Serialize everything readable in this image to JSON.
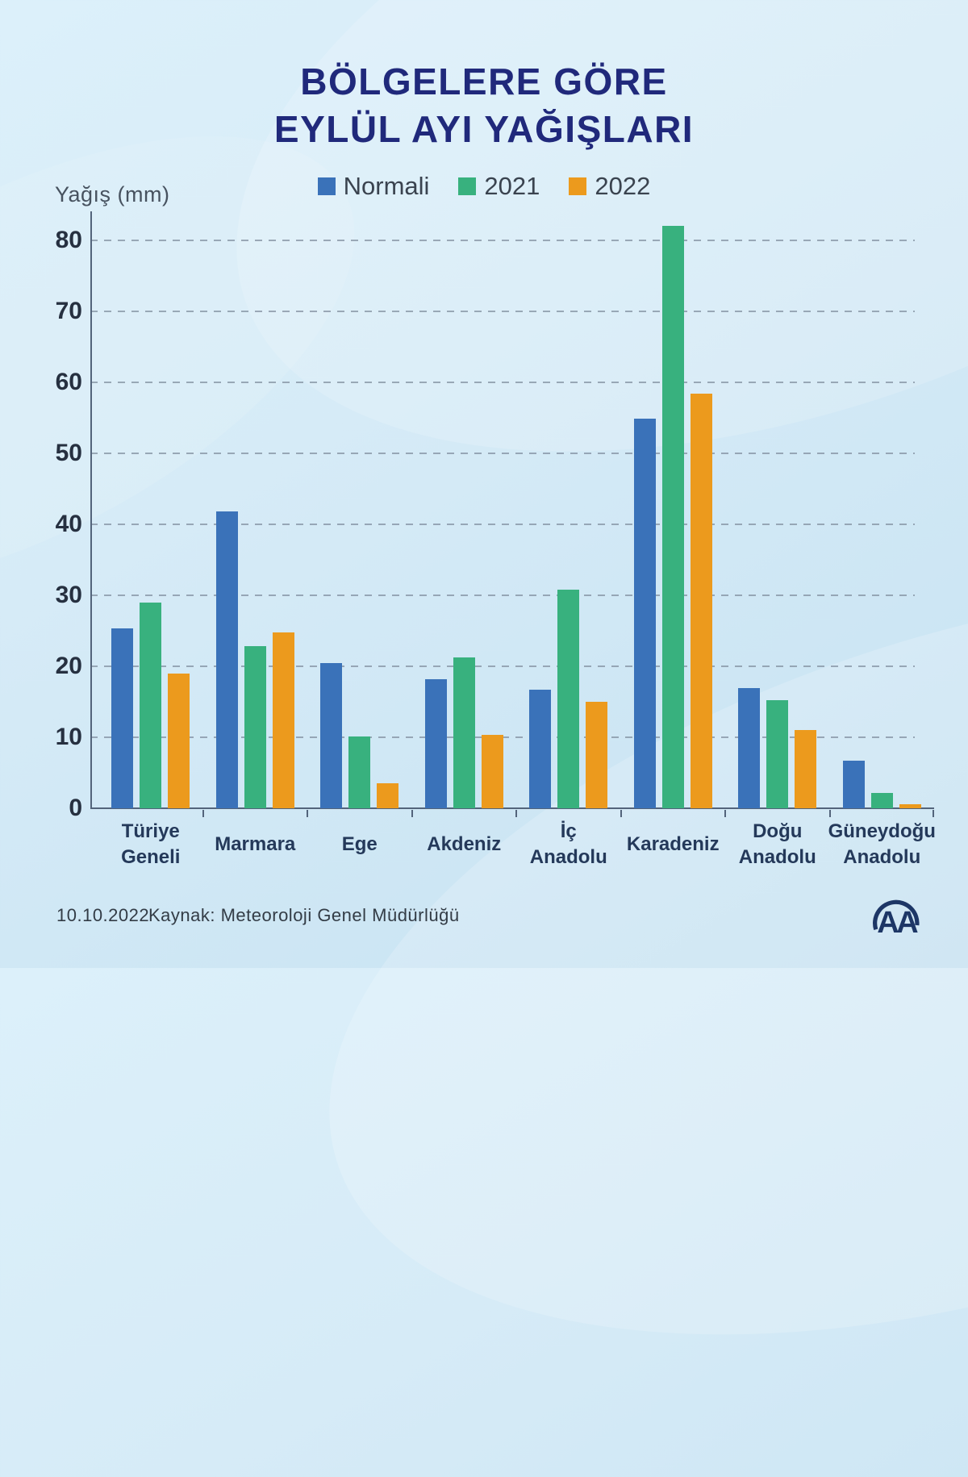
{
  "title": {
    "line1": "BÖLGELERE GÖRE",
    "line2": "EYLÜL AYI YAĞIŞLARI"
  },
  "y_axis_label": "Yağış (mm)",
  "footer": {
    "date": "10.10.2022",
    "source": "Kaynak: Meteoroloji Genel Müdürlüğü"
  },
  "logo_text": "AA",
  "colors": {
    "background": "#d6ebf7",
    "title": "#20297b",
    "axis": "#53647b",
    "grid": "#8290a0",
    "tick_text": "#263040",
    "category_text": "#24395a",
    "legend_text": "#3a434f",
    "footer_text": "#333c46",
    "logo": "#1d3666",
    "series_blue": "#3a72b9",
    "series_green": "#38b17e",
    "series_orange": "#ec9a1d"
  },
  "chart_data": {
    "type": "bar",
    "title": "BÖLGELERE GÖRE EYLÜL AYI YAĞIŞLARI",
    "xlabel": "",
    "ylabel": "Yağış (mm)",
    "ylim": [
      0,
      84
    ],
    "yticks": [
      0,
      10,
      20,
      30,
      40,
      50,
      60,
      70,
      80
    ],
    "grid": true,
    "grid_style": "dashed",
    "legend_position": "top",
    "categories": [
      "Türiye Geneli",
      "Marmara",
      "Ege",
      "Akdeniz",
      "İç Anadolu",
      "Karadeniz",
      "Doğu Anadolu",
      "Güneydoğu Anadolu"
    ],
    "category_lines": [
      [
        "Türiye",
        "Geneli"
      ],
      [
        "Marmara"
      ],
      [
        "Ege"
      ],
      [
        "Akdeniz"
      ],
      [
        "İç",
        "Anadolu"
      ],
      [
        "Karadeniz"
      ],
      [
        "Doğu",
        "Anadolu"
      ],
      [
        "Güneydoğu",
        "Anadolu"
      ]
    ],
    "series": [
      {
        "name": "Normali",
        "color": "#3a72b9",
        "values": [
          25.3,
          41.8,
          20.4,
          18.2,
          16.7,
          54.9,
          16.9,
          6.7
        ]
      },
      {
        "name": "2021",
        "color": "#38b17e",
        "values": [
          29.0,
          22.8,
          10.1,
          21.3,
          30.8,
          82.0,
          15.2,
          2.2
        ]
      },
      {
        "name": "2022",
        "color": "#ec9a1d",
        "values": [
          19.0,
          24.8,
          3.5,
          10.3,
          15.0,
          58.4,
          11.0,
          0.6
        ]
      }
    ]
  }
}
